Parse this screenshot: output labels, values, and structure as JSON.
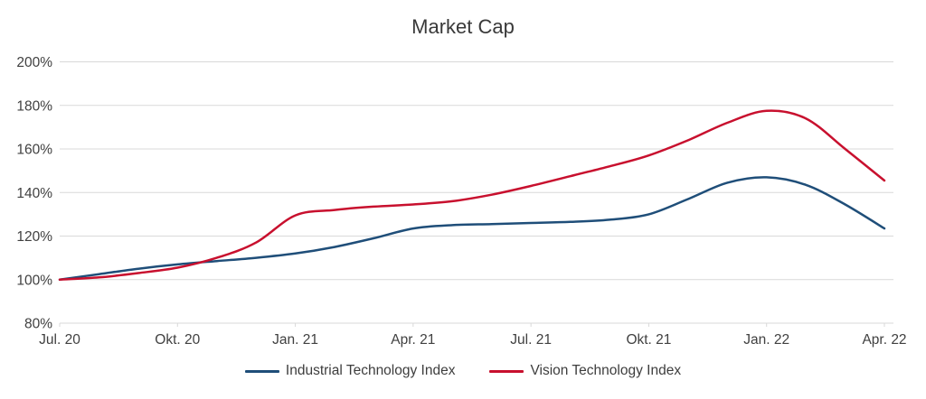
{
  "chart_data": {
    "type": "line",
    "title": "Market Cap",
    "grid": "horizontal",
    "gridline_color": "#d9d9d9",
    "axis_text_color": "#404040",
    "legend_position": "bottom",
    "x": [
      "Jul. 20",
      "Aug. 20",
      "Sep. 20",
      "Okt. 20",
      "Nov. 20",
      "Dez. 20",
      "Jan. 21",
      "Feb. 21",
      "Mär. 21",
      "Apr. 21",
      "Mai 21",
      "Jun. 21",
      "Jul. 21",
      "Aug. 21",
      "Sep. 21",
      "Okt. 21",
      "Nov. 21",
      "Dez. 21",
      "Jan. 22",
      "Feb. 22",
      "Mär. 22",
      "Apr. 22"
    ],
    "x_axis": {
      "tick_labels": [
        "Jul. 20",
        "Okt. 20",
        "Jan. 21",
        "Apr. 21",
        "Jul. 21",
        "Okt. 21",
        "Jan. 22",
        "Apr. 22"
      ],
      "tick_indices": [
        0,
        3,
        6,
        9,
        12,
        15,
        18,
        21
      ]
    },
    "y_axis": {
      "tick_labels": [
        "200%",
        "180%",
        "160%",
        "140%",
        "120%",
        "100%",
        "80%"
      ],
      "tick_values": [
        200,
        180,
        160,
        140,
        120,
        100,
        80
      ]
    },
    "ylim": [
      80,
      200
    ],
    "series": [
      {
        "name": "Industrial Technology Index",
        "color": "#1F4E79",
        "values": [
          100,
          102.5,
          105,
          107,
          108.5,
          110,
          112,
          115,
          119,
          123.5,
          125,
          125.5,
          126,
          126.5,
          127.5,
          130,
          137,
          144.5,
          147,
          143.5,
          134.5,
          123.5
        ]
      },
      {
        "name": "Vision Technology Index",
        "color": "#C8102E",
        "values": [
          100,
          101,
          103,
          105.5,
          110,
          117,
          129.5,
          132,
          133.5,
          134.5,
          136,
          139,
          143,
          147.5,
          152,
          157,
          164,
          172,
          177.5,
          174,
          160,
          145.5
        ]
      }
    ]
  }
}
